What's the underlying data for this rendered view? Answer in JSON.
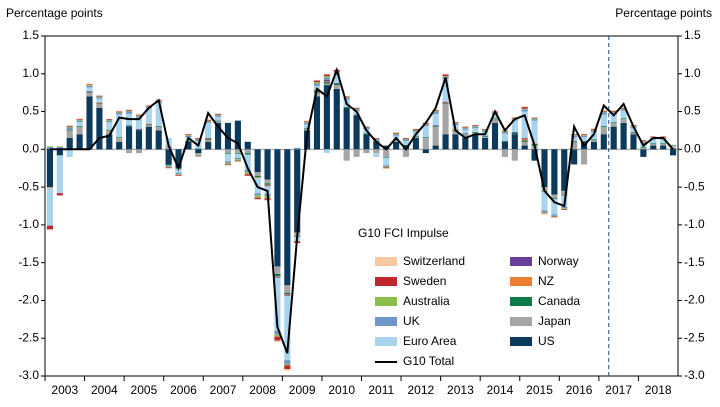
{
  "chart_data": {
    "type": "bar",
    "stacked": true,
    "y_label": "Percentage points",
    "y2_label": "Percentage points",
    "legend_title": "G10 FCI Impulse",
    "categories": [
      null,
      "2003",
      null,
      null,
      null,
      "2004",
      null,
      null,
      null,
      "2005",
      null,
      null,
      null,
      "2006",
      null,
      null,
      null,
      "2007",
      null,
      null,
      null,
      "2008",
      null,
      null,
      null,
      "2009",
      null,
      null,
      null,
      "2010",
      null,
      null,
      null,
      "2011",
      null,
      null,
      null,
      "2012",
      null,
      null,
      null,
      "2013",
      null,
      null,
      null,
      "2014",
      null,
      null,
      null,
      "2015",
      null,
      null,
      null,
      "2016",
      null,
      null,
      null,
      "2017",
      null,
      null,
      null,
      "2018",
      null,
      null
    ],
    "ylim": [
      -3,
      1.5
    ],
    "yticks": [
      1.5,
      {
        "value": 1,
        "label": "1.0"
      },
      0.5,
      {
        "value": 0,
        "label": "0.0"
      },
      -0.5,
      {
        "value": -1,
        "label": "-1.0"
      },
      -1.5,
      {
        "value": -2,
        "label": "-2.0"
      },
      -2.5,
      {
        "value": -3,
        "label": "-3.0"
      }
    ],
    "grid": false,
    "series": [
      {
        "name": "Switzerland",
        "color": "#f8c9a0",
        "values": [
          0,
          0,
          0.01,
          0.01,
          0.01,
          0,
          0,
          0.01,
          0.01,
          0,
          0,
          0.01,
          0,
          0,
          0,
          0,
          0.01,
          0,
          0,
          0,
          0,
          0,
          -0.01,
          -0.02,
          -0.02,
          0,
          0.01,
          0.01,
          0.01,
          0.01,
          0,
          0,
          0,
          0,
          -0.01,
          0,
          0,
          0,
          0.01,
          0.01,
          0.01,
          0,
          0,
          0,
          0,
          0.01,
          0,
          0,
          0.01,
          0,
          0,
          0,
          0,
          0,
          0,
          0.01,
          0.01,
          0.01,
          0,
          0,
          0,
          0,
          0,
          0
        ]
      },
      {
        "name": "Sweden",
        "color": "#c0272d",
        "values": [
          -0.05,
          -0.03,
          0.01,
          0.01,
          0.01,
          0.01,
          0.01,
          0.01,
          0.01,
          0.01,
          0.01,
          0.01,
          -0.01,
          -0.01,
          0.01,
          0.01,
          0.01,
          0.01,
          -0.01,
          -0.01,
          -0.02,
          -0.02,
          -0.02,
          -0.05,
          -0.05,
          -0.02,
          0.01,
          0.02,
          0.02,
          0.02,
          0.01,
          0.01,
          0.01,
          0.01,
          -0.01,
          0.01,
          0.01,
          0.01,
          0.01,
          0.01,
          0.02,
          0.01,
          0.01,
          0.01,
          0.01,
          0.01,
          0.01,
          0.01,
          0.02,
          0.01,
          -0.01,
          -0.01,
          -0.01,
          0.01,
          0.01,
          0.01,
          0.01,
          0.01,
          0.01,
          0.01,
          0.01,
          0.01,
          0.01,
          0
        ]
      },
      {
        "name": "Australia",
        "color": "#8cbe4c",
        "values": [
          0.01,
          0.01,
          0.01,
          0.01,
          0.01,
          0.01,
          0.01,
          0.01,
          0.01,
          0.01,
          0.01,
          0.01,
          -0.01,
          -0.01,
          0.01,
          0.01,
          0.01,
          0.01,
          -0.02,
          -0.02,
          -0.03,
          -0.03,
          -0.03,
          -0.03,
          -0.02,
          -0.01,
          0.01,
          0.02,
          0.02,
          0.02,
          0.01,
          0.01,
          0.01,
          0.01,
          -0.01,
          0.01,
          0.01,
          0.01,
          0.01,
          0.01,
          0.01,
          0.01,
          0.01,
          0.01,
          0.01,
          0.01,
          0.01,
          0.01,
          0.01,
          0.01,
          -0.01,
          -0.01,
          -0.01,
          0.01,
          0.01,
          0.01,
          0.01,
          0.01,
          0.01,
          0.01,
          0.01,
          0.01,
          0.01,
          0.01
        ]
      },
      {
        "name": "UK",
        "color": "#6f96c8",
        "values": [
          0.02,
          0.02,
          0.03,
          0.02,
          0.02,
          0.02,
          0.02,
          0.02,
          0.03,
          0.02,
          0.02,
          0.02,
          -0.02,
          -0.02,
          0.02,
          0.02,
          0.02,
          0.02,
          -0.02,
          -0.02,
          -0.03,
          -0.03,
          -0.03,
          -0.05,
          -0.05,
          0.02,
          0.02,
          0.03,
          0.03,
          0.03,
          0.02,
          0.02,
          0.02,
          0.02,
          -0.02,
          0.02,
          0.02,
          0.02,
          0.02,
          0.03,
          0.03,
          0.02,
          0.02,
          0.02,
          0.02,
          0.02,
          0.02,
          0.02,
          0.03,
          0.02,
          -0.02,
          -0.02,
          -0.02,
          0.02,
          0.02,
          0.02,
          0.03,
          0.03,
          0.02,
          0.02,
          0.02,
          0.02,
          0.02,
          0.01
        ]
      },
      {
        "name": "Euro Area",
        "color": "#a9d4ee",
        "values": [
          -0.5,
          -0.5,
          -0.1,
          0.05,
          0.05,
          0.05,
          0.1,
          0.3,
          0.15,
          0.15,
          0.2,
          0.3,
          0.1,
          -0.05,
          0.05,
          0.1,
          0.2,
          0.05,
          -0.1,
          -0.05,
          -0.2,
          -0.2,
          -0.1,
          -0.7,
          -0.85,
          -0.05,
          0.05,
          0.05,
          -0.05,
          0.1,
          0.1,
          0.05,
          0.05,
          -0.05,
          -0.1,
          0.05,
          0.05,
          0.05,
          0.15,
          0.15,
          0.3,
          0.05,
          0.05,
          0.05,
          0.05,
          0.05,
          0.1,
          0.15,
          0.35,
          0.3,
          -0.25,
          -0.2,
          -0.15,
          0.05,
          0.05,
          0.1,
          0.15,
          0.1,
          0.1,
          0.05,
          0.05,
          0.05,
          0.05,
          0.02
        ]
      },
      {
        "name": "Norway",
        "color": "#6a3d9a",
        "values": [
          0,
          0,
          0,
          0,
          0.01,
          0,
          0,
          0,
          0.01,
          0.01,
          0,
          0,
          0,
          0,
          0,
          0,
          0.01,
          0,
          0,
          0,
          0,
          0,
          -0.01,
          -0.01,
          -0.01,
          0,
          0,
          0.01,
          0.02,
          0.01,
          0,
          0,
          0,
          0,
          0,
          0,
          0,
          0,
          0,
          0.01,
          0.01,
          0,
          0,
          0,
          0,
          0,
          0,
          0.01,
          0.01,
          0,
          0,
          0,
          0,
          0,
          0,
          0,
          0,
          0,
          0,
          0,
          0,
          0,
          0,
          0
        ]
      },
      {
        "name": "NZ",
        "color": "#ed7d31",
        "values": [
          -0.01,
          0,
          0,
          0,
          0,
          0.01,
          0,
          0,
          0,
          0,
          0.01,
          0,
          0,
          0,
          0,
          0,
          0.01,
          0,
          0,
          0,
          0,
          -0.01,
          -0.01,
          -0.01,
          -0.01,
          0,
          0,
          0.01,
          0.01,
          0,
          0,
          0,
          0,
          0,
          0,
          0,
          0,
          0,
          0,
          0,
          0.01,
          0.01,
          0,
          0,
          0,
          0,
          0,
          0,
          0.02,
          0.01,
          0,
          0,
          0,
          0,
          0,
          0,
          0,
          0,
          0,
          0,
          0,
          0,
          0,
          0.01
        ]
      },
      {
        "name": "Canada",
        "color": "#0d7a48",
        "values": [
          0.01,
          0.01,
          0.01,
          0.01,
          0.01,
          0.01,
          0.01,
          0.01,
          0.01,
          0.01,
          0.01,
          0.01,
          -0.01,
          -0.01,
          0.01,
          0.01,
          0.01,
          0.01,
          -0.01,
          -0.01,
          -0.02,
          -0.02,
          -0.02,
          -0.03,
          -0.02,
          -0.01,
          0.01,
          0.02,
          0.02,
          0.02,
          0.01,
          0.01,
          0.01,
          0.01,
          -0.01,
          0.01,
          0.01,
          0.01,
          0.01,
          0.01,
          0.01,
          0.01,
          0.01,
          0.01,
          0.01,
          0.01,
          0.01,
          0.02,
          0.02,
          0.02,
          -0.01,
          -0.01,
          -0.01,
          0.01,
          0.01,
          0.01,
          0.01,
          0.01,
          0.01,
          0.01,
          0.01,
          0.01,
          0.01,
          0.01
        ]
      },
      {
        "name": "Japan",
        "color": "#a5a5a5",
        "values": [
          0.0,
          0.0,
          0.1,
          0.1,
          0.05,
          0.05,
          0.05,
          0.05,
          -0.05,
          -0.05,
          0.02,
          0.05,
          0.05,
          0.0,
          0.0,
          -0.05,
          0.02,
          0.02,
          -0.05,
          -0.05,
          -0.05,
          -0.05,
          -0.05,
          -0.1,
          -0.1,
          -0.05,
          0.02,
          0.05,
          0.02,
          0.05,
          -0.15,
          -0.1,
          -0.05,
          -0.05,
          -0.1,
          0.02,
          -0.1,
          0.02,
          0.15,
          0.25,
          0.4,
          0.05,
          0.05,
          0.02,
          0.02,
          0.05,
          -0.1,
          -0.15,
          0.05,
          0.05,
          -0.05,
          -0.05,
          -0.05,
          0.1,
          -0.2,
          0.02,
          0.1,
          0.05,
          0.05,
          0.02,
          0.02,
          0.02,
          0.02,
          0.0
        ]
      },
      {
        "name": "US",
        "color": "#0b3a5c",
        "values": [
          -0.5,
          -0.08,
          0.15,
          0.2,
          0.7,
          0.55,
          0.2,
          0.1,
          0.3,
          0.25,
          0.3,
          0.25,
          -0.2,
          -0.25,
          0.1,
          -0.05,
          0.1,
          0.35,
          0.35,
          0.38,
          0.1,
          -0.3,
          -0.4,
          -1.55,
          -1.8,
          -1.1,
          0.25,
          0.7,
          0.85,
          0.8,
          0.55,
          0.45,
          0.2,
          0.1,
          0.05,
          0.1,
          0.05,
          0.15,
          -0.05,
          0.05,
          0.2,
          0.2,
          0.15,
          0.2,
          0.15,
          0.35,
          0.1,
          0.2,
          0.05,
          -0.15,
          -0.5,
          -0.6,
          -0.55,
          -0.2,
          0.1,
          0.1,
          0.2,
          0.3,
          0.35,
          0.2,
          -0.1,
          0.05,
          0.05,
          -0.08
        ]
      }
    ],
    "line": {
      "name": "G10 Total",
      "color": "#000000",
      "values": [
        0.0,
        0.0,
        0.0,
        0.0,
        0.0,
        0.15,
        0.18,
        0.42,
        0.4,
        0.4,
        0.55,
        0.65,
        0.05,
        -0.25,
        0.15,
        0.05,
        0.48,
        0.3,
        0.15,
        0.08,
        -0.25,
        -0.5,
        -0.55,
        -2.35,
        -2.7,
        -1.15,
        0.2,
        0.8,
        0.7,
        1.05,
        0.6,
        0.5,
        0.25,
        0.1,
        0.0,
        0.15,
        0.0,
        0.2,
        0.35,
        0.55,
        0.95,
        0.25,
        0.15,
        0.2,
        0.2,
        0.5,
        0.25,
        0.4,
        0.45,
        0.05,
        -0.55,
        -0.7,
        -0.75,
        0.3,
        0.05,
        0.2,
        0.58,
        0.45,
        0.6,
        0.3,
        0.05,
        0.15,
        0.15,
        0.0
      ]
    }
  }
}
